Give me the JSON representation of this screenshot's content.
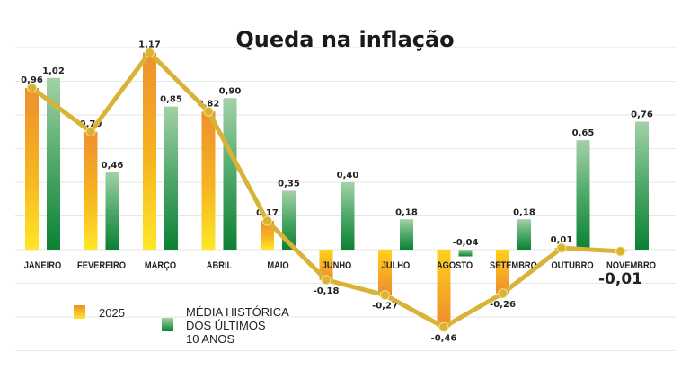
{
  "chart_data": {
    "type": "bar",
    "title": "Queda na inflação",
    "categories": [
      "JANEIRO",
      "FEVEREIRO",
      "MARÇO",
      "ABRIL",
      "MAIO",
      "JUNHO",
      "JULHO",
      "AGOSTO",
      "SETEMBRO",
      "OUTUBRO",
      "NOVEMBRO"
    ],
    "series": [
      {
        "name": "2025",
        "values": [
          0.96,
          0.7,
          1.17,
          0.82,
          0.17,
          -0.18,
          -0.27,
          -0.46,
          -0.26,
          0.01,
          -0.01
        ],
        "labels": [
          "0,96",
          "0,70",
          "1,17",
          "0,82",
          "0,17",
          "-0,18",
          "-0,27",
          "-0,46",
          "-0,26",
          "0,01",
          "-0,01"
        ],
        "color": "#f39a2c",
        "overlay_line_color": "#d9b335"
      },
      {
        "name": "MÉDIA HISTÓRICA DOS ÚLTIMOS 10 ANOS",
        "values": [
          1.02,
          0.46,
          0.85,
          0.9,
          0.35,
          0.4,
          0.18,
          -0.04,
          0.18,
          0.65,
          0.76
        ],
        "labels": [
          "1,02",
          "0,46",
          "0,85",
          "0,90",
          "0,35",
          "0,40",
          "0,18",
          "-0,04",
          "0,18",
          "0,65",
          "0,76"
        ],
        "color": "#148a3c"
      }
    ],
    "ylim": [
      -0.6,
      1.2
    ],
    "grid": true,
    "legend_placement": "bottom-left",
    "legend": {
      "a": "2025",
      "b_lines": [
        "MÉDIA HISTÓRICA",
        "DOS ÚLTIMOS",
        "10 ANOS"
      ]
    }
  }
}
